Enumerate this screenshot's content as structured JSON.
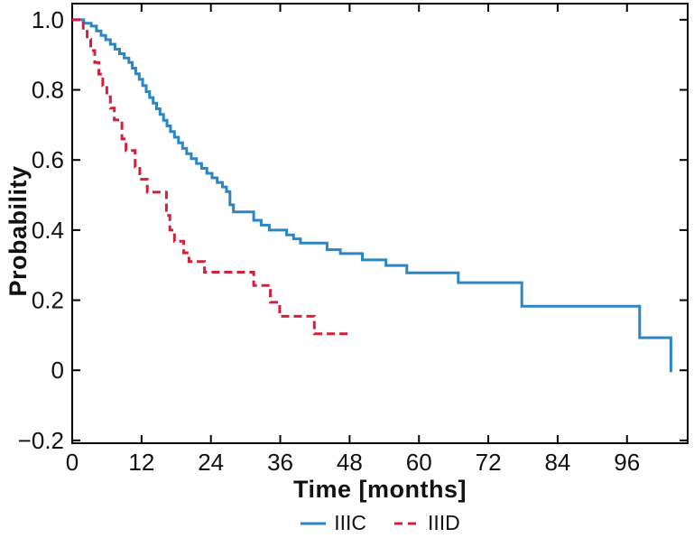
{
  "chart_data": {
    "type": "line",
    "subtype": "kaplan-meier-step",
    "title": "",
    "xlabel": "Time [months]",
    "ylabel": "Probability",
    "xlim": [
      0,
      106.5
    ],
    "ylim": [
      -0.208,
      1.046
    ],
    "x_ticks": [
      0,
      12,
      24,
      36,
      48,
      60,
      72,
      84,
      96
    ],
    "x_tick_labels": [
      "0",
      "12",
      "24",
      "36",
      "48",
      "60",
      "72",
      "84",
      "96"
    ],
    "y_ticks": [
      -0.2,
      0,
      0.2,
      0.4,
      0.6,
      0.8,
      1.0
    ],
    "y_tick_labels": [
      "−0.2",
      "0",
      "0.2",
      "0.4",
      "0.6",
      "0.8",
      "1.0"
    ],
    "grid": false,
    "box": true,
    "legend_position": "bottom-center",
    "series": [
      {
        "name": "IIIC",
        "color": "#2b86c4",
        "style": "solid",
        "points": [
          [
            0,
            1.0
          ],
          [
            2.0,
            0.99
          ],
          [
            3.3,
            0.982
          ],
          [
            4.2,
            0.968
          ],
          [
            5.0,
            0.955
          ],
          [
            5.8,
            0.943
          ],
          [
            6.6,
            0.93
          ],
          [
            7.4,
            0.916
          ],
          [
            8.2,
            0.903
          ],
          [
            9.0,
            0.891
          ],
          [
            9.8,
            0.878
          ],
          [
            10.4,
            0.862
          ],
          [
            11.0,
            0.846
          ],
          [
            11.6,
            0.83
          ],
          [
            12.2,
            0.812
          ],
          [
            12.8,
            0.795
          ],
          [
            13.4,
            0.778
          ],
          [
            14.0,
            0.762
          ],
          [
            14.6,
            0.746
          ],
          [
            15.2,
            0.73
          ],
          [
            15.8,
            0.713
          ],
          [
            16.4,
            0.697
          ],
          [
            17.0,
            0.681
          ],
          [
            17.7,
            0.665
          ],
          [
            18.4,
            0.649
          ],
          [
            19.1,
            0.633
          ],
          [
            19.8,
            0.618
          ],
          [
            20.6,
            0.604
          ],
          [
            21.5,
            0.59
          ],
          [
            22.4,
            0.576
          ],
          [
            23.3,
            0.562
          ],
          [
            24.2,
            0.549
          ],
          [
            25.1,
            0.536
          ],
          [
            26.0,
            0.523
          ],
          [
            26.7,
            0.51
          ],
          [
            27.3,
            0.472
          ],
          [
            27.9,
            0.452
          ],
          [
            31.4,
            0.428
          ],
          [
            32.7,
            0.414
          ],
          [
            34.1,
            0.4
          ],
          [
            37.1,
            0.386
          ],
          [
            38.3,
            0.375
          ],
          [
            39.5,
            0.363
          ],
          [
            44.1,
            0.344
          ],
          [
            46.4,
            0.333
          ],
          [
            50.2,
            0.315
          ],
          [
            54.3,
            0.299
          ],
          [
            57.9,
            0.278
          ],
          [
            66.8,
            0.25
          ],
          [
            77.8,
            0.183
          ],
          [
            98.2,
            0.093
          ],
          [
            103.6,
            -0.005
          ]
        ]
      },
      {
        "name": "IIID",
        "color": "#d2203c",
        "style": "dashed",
        "points": [
          [
            0,
            1.0
          ],
          [
            1.9,
            0.972
          ],
          [
            2.6,
            0.944
          ],
          [
            3.2,
            0.912
          ],
          [
            3.9,
            0.878
          ],
          [
            4.6,
            0.845
          ],
          [
            5.3,
            0.812
          ],
          [
            6.0,
            0.78
          ],
          [
            6.6,
            0.748
          ],
          [
            7.3,
            0.714
          ],
          [
            8.6,
            0.66
          ],
          [
            9.3,
            0.627
          ],
          [
            10.9,
            0.58
          ],
          [
            11.7,
            0.545
          ],
          [
            13.0,
            0.508
          ],
          [
            16.3,
            0.442
          ],
          [
            16.9,
            0.4
          ],
          [
            17.7,
            0.368
          ],
          [
            19.3,
            0.335
          ],
          [
            20.2,
            0.31
          ],
          [
            22.9,
            0.28
          ],
          [
            31.4,
            0.242
          ],
          [
            34.3,
            0.194
          ],
          [
            35.9,
            0.154
          ],
          [
            41.9,
            0.104
          ],
          [
            47.8,
            0.104
          ]
        ]
      }
    ]
  },
  "colors": {
    "axis": "#000000",
    "text": "#111111",
    "background": "#ffffff",
    "series_iiic": "#2b86c4",
    "series_iiid": "#d2203c"
  }
}
